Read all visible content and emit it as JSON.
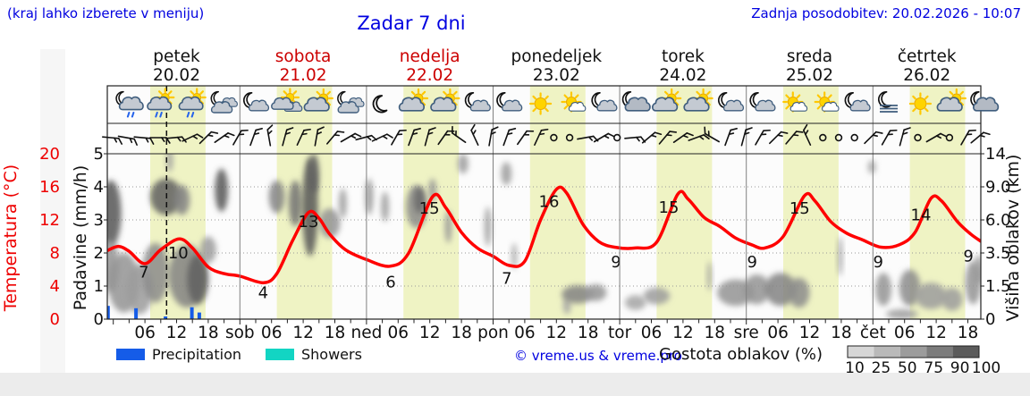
{
  "header": {
    "note": "(kraj lahko izberete v meniju)",
    "title": "Zadar 7 dni",
    "updated": "Zadnja posodobitev: 20.02.2026 - 10:07"
  },
  "days": [
    {
      "name": "petek",
      "date": "20.02",
      "red": false
    },
    {
      "name": "sobota",
      "date": "21.02",
      "red": true
    },
    {
      "name": "nedelja",
      "date": "22.02",
      "red": true
    },
    {
      "name": "ponedeljek",
      "date": "23.02",
      "red": false
    },
    {
      "name": "torek",
      "date": "24.02",
      "red": false
    },
    {
      "name": "sreda",
      "date": "25.02",
      "red": false
    },
    {
      "name": "četrtek",
      "date": "26.02",
      "red": false
    }
  ],
  "axes": {
    "temp_label": "Temperatura (°C)",
    "temp_ticks": [
      20,
      16,
      12,
      8,
      4,
      0
    ],
    "precip_label": "Padavine (mm/h)",
    "precip_ticks": [
      5,
      4,
      3,
      2,
      1,
      0
    ],
    "cloud_label": "Višina oblakov (km)",
    "cloud_ticks": [
      "14",
      "9.0",
      "6.0",
      "3.5",
      "1.5",
      "0"
    ],
    "hour_ticks": [
      "06",
      "12",
      "18"
    ],
    "day_abbr": [
      "sob",
      "ned",
      "pon",
      "tor",
      "sre",
      "čet"
    ]
  },
  "legend": {
    "precipitation": "Precipitation",
    "showers": "Showers",
    "credit": "© vreme.us & vreme.pro",
    "cloud_density": "Gostota oblakov (%)",
    "density_ticks": [
      "10",
      "25",
      "50",
      "75",
      "90",
      "100"
    ],
    "density_colors": [
      "#D6D6D6",
      "#B9B9B9",
      "#9C9C9C",
      "#7C7C7C",
      "#5B5B5B"
    ]
  },
  "colors": {
    "blue_text": "#0000e0",
    "red_text": "#cc0000",
    "temp_curve": "#ff0000",
    "temp_axis": "#ee0000",
    "precip_bar": "#155ce8",
    "showers": "#12d5c3",
    "day_band": "#eff3c4",
    "panel_bg": "#fcfcfc",
    "grid": "#999999"
  },
  "chart_data": {
    "type": "line",
    "title": "Zadar 7 dni",
    "ylabel_left": "Temperatura (°C) / Padavine (mm/h)",
    "ylabel_right": "Višina oblakov (km)",
    "temp_range": [
      0,
      20
    ],
    "precip_range": [
      0,
      5
    ],
    "start_hour": -1.1,
    "end_hour": 164.5,
    "now_hour": 10.1,
    "sunrise": 7.0,
    "sunset": 17.5,
    "temperature_points": [
      [
        -1.1,
        8.3
      ],
      [
        1,
        8.8
      ],
      [
        3,
        8.2
      ],
      [
        6,
        6.7
      ],
      [
        9,
        8.4
      ],
      [
        12.5,
        9.7
      ],
      [
        15,
        8.6
      ],
      [
        18,
        6.3
      ],
      [
        21,
        5.5
      ],
      [
        24,
        5.2
      ],
      [
        28.5,
        4.4
      ],
      [
        31,
        5.5
      ],
      [
        34,
        9.5
      ],
      [
        37,
        12.9
      ],
      [
        39,
        12.2
      ],
      [
        41,
        10.3
      ],
      [
        44,
        8.4
      ],
      [
        48,
        7.2
      ],
      [
        52.5,
        6.4
      ],
      [
        56,
        8.0
      ],
      [
        60.5,
        14.8
      ],
      [
        63,
        13.5
      ],
      [
        66,
        10.5
      ],
      [
        69,
        8.6
      ],
      [
        72,
        7.6
      ],
      [
        75,
        6.5
      ],
      [
        78,
        7.0
      ],
      [
        81,
        12.0
      ],
      [
        84,
        15.7
      ],
      [
        86,
        15.2
      ],
      [
        89,
        11.5
      ],
      [
        92,
        9.4
      ],
      [
        95,
        8.7
      ],
      [
        99,
        8.6
      ],
      [
        103,
        9.3
      ],
      [
        107,
        15.1
      ],
      [
        109,
        14.5
      ],
      [
        112,
        12.3
      ],
      [
        115,
        11.2
      ],
      [
        118,
        9.8
      ],
      [
        121,
        9.0
      ],
      [
        123.5,
        8.6
      ],
      [
        127,
        10.0
      ],
      [
        131,
        14.9
      ],
      [
        133,
        14.3
      ],
      [
        136,
        11.8
      ],
      [
        139,
        10.4
      ],
      [
        142,
        9.6
      ],
      [
        145.5,
        8.7
      ],
      [
        149,
        9.0
      ],
      [
        152,
        10.5
      ],
      [
        155,
        14.6
      ],
      [
        157,
        14.3
      ],
      [
        160,
        11.8
      ],
      [
        162.5,
        10.3
      ],
      [
        164.5,
        9.4
      ]
    ],
    "temp_value_labels": [
      [
        5.8,
        5.7,
        "7"
      ],
      [
        12.3,
        8.0,
        "10"
      ],
      [
        28.4,
        3.2,
        "4"
      ],
      [
        37.0,
        11.8,
        "13"
      ],
      [
        52.6,
        4.5,
        "6"
      ],
      [
        59.9,
        13.4,
        "15"
      ],
      [
        74.6,
        4.9,
        "7"
      ],
      [
        82.6,
        14.2,
        "16"
      ],
      [
        95.3,
        6.9,
        "9"
      ],
      [
        105.3,
        13.5,
        "15"
      ],
      [
        121.1,
        6.9,
        "9"
      ],
      [
        130.1,
        13.4,
        "15"
      ],
      [
        145.0,
        6.9,
        "9"
      ],
      [
        153.1,
        12.6,
        "14"
      ],
      [
        162.1,
        7.6,
        "9"
      ]
    ],
    "precip_bars_mm": [
      [
        -1.0,
        0.4
      ],
      [
        4.3,
        0.33
      ],
      [
        9.9,
        0.08
      ],
      [
        14.9,
        0.36
      ],
      [
        16.3,
        0.2
      ]
    ],
    "cloud_blobs": [
      [
        -0.5,
        3.2,
        4,
        2.0,
        0.85
      ],
      [
        -0.5,
        1.6,
        3,
        1.6,
        0.5
      ],
      [
        2,
        1.1,
        6,
        1.8,
        0.5
      ],
      [
        5,
        0.9,
        5,
        1.5,
        0.45
      ],
      [
        8,
        1.4,
        5,
        1.8,
        0.55
      ],
      [
        10,
        3.7,
        6,
        1.1,
        0.8
      ],
      [
        10.7,
        4.8,
        1.2,
        0.7,
        0.45
      ],
      [
        13,
        3.6,
        3,
        0.9,
        0.6
      ],
      [
        14,
        1.3,
        7,
        1.9,
        0.6
      ],
      [
        16,
        1.2,
        4,
        1.5,
        0.8
      ],
      [
        18,
        2.1,
        3,
        0.8,
        0.45
      ],
      [
        20.5,
        3.9,
        2.5,
        1.3,
        0.85
      ],
      [
        31,
        3.7,
        3,
        1.0,
        0.6
      ],
      [
        34.5,
        3.5,
        2.5,
        1.4,
        0.7
      ],
      [
        37.3,
        3.4,
        3,
        3.0,
        0.85
      ],
      [
        38,
        4.4,
        2,
        1.2,
        0.8
      ],
      [
        41,
        2.9,
        4,
        0.9,
        0.5
      ],
      [
        43.5,
        3.5,
        1.5,
        0.9,
        0.45
      ],
      [
        48.5,
        3.7,
        1.5,
        1.1,
        0.5
      ],
      [
        51.5,
        3.4,
        1.5,
        0.9,
        0.45
      ],
      [
        57.5,
        3.4,
        4,
        1.3,
        0.55
      ],
      [
        58,
        3.6,
        2,
        0.8,
        0.75
      ],
      [
        60.5,
        3.9,
        1.5,
        0.7,
        0.5
      ],
      [
        63.5,
        2.8,
        1.3,
        1.0,
        0.5
      ],
      [
        66.3,
        4.7,
        2,
        0.6,
        0.45
      ],
      [
        71,
        2.8,
        1.3,
        1.2,
        0.45
      ],
      [
        74.5,
        4.4,
        2,
        0.7,
        0.45
      ],
      [
        76,
        1.9,
        1,
        0.8,
        0.4
      ],
      [
        86,
        0.4,
        1.5,
        0.5,
        0.4
      ],
      [
        88,
        0.75,
        6,
        0.55,
        0.6
      ],
      [
        91.5,
        0.8,
        4,
        0.5,
        0.5
      ],
      [
        99,
        0.5,
        4,
        0.45,
        0.4
      ],
      [
        103,
        0.7,
        5,
        0.5,
        0.45
      ],
      [
        113,
        1.3,
        0.8,
        0.9,
        0.45
      ],
      [
        118,
        0.8,
        7,
        0.8,
        0.5
      ],
      [
        122,
        0.9,
        5,
        0.9,
        0.5
      ],
      [
        126.5,
        0.9,
        6,
        1.0,
        0.6
      ],
      [
        130,
        0.8,
        4,
        0.9,
        0.55
      ],
      [
        137.8,
        1.9,
        0.8,
        1.2,
        0.5
      ],
      [
        143.8,
        4.6,
        1.5,
        0.4,
        0.4
      ],
      [
        146,
        0.9,
        3,
        1.0,
        0.5
      ],
      [
        149.5,
        0.15,
        6,
        0.3,
        0.45
      ],
      [
        151,
        0.95,
        4,
        1.1,
        0.55
      ],
      [
        155,
        0.7,
        6,
        0.8,
        0.45
      ],
      [
        159,
        0.6,
        4,
        0.7,
        0.45
      ],
      [
        163,
        1.1,
        3,
        1.3,
        0.5
      ],
      [
        164,
        1.5,
        1.5,
        0.9,
        0.5
      ]
    ],
    "weather_icons": [
      [
        "moon-rain",
        "sun-rain",
        "sun-rain",
        "moon-clouds"
      ],
      [
        "moon-cloud",
        "sun-clouds",
        "sun-cloud",
        "moon-clouds"
      ],
      [
        "moon",
        "sun-cloud",
        "sun-cloud",
        "moon-cloud"
      ],
      [
        "moon-cloud",
        "sun",
        "sun-cloud-small",
        "moon-cloud"
      ],
      [
        "moon-cloud-dark",
        "sun-cloud",
        "sun-cloud",
        "moon-cloud"
      ],
      [
        "moon-cloud",
        "sun-cloud-small",
        "sun-cloud-small",
        "moon-cloud"
      ],
      [
        "moon-fog",
        "sun",
        "sun-cloud",
        "moon-cloud-dark"
      ]
    ],
    "wind_barbs": [
      [
        -0.5,
        "b",
        95
      ],
      [
        2.5,
        "b",
        100
      ],
      [
        5.5,
        "b",
        95
      ],
      [
        8.5,
        "b",
        90
      ],
      [
        11.5,
        "b",
        85
      ],
      [
        14.5,
        "b",
        65
      ],
      [
        17.5,
        "b",
        45
      ],
      [
        20.5,
        "b",
        55
      ],
      [
        23.5,
        "b",
        30
      ],
      [
        26.5,
        "b",
        20
      ],
      [
        29.5,
        "b",
        350
      ],
      [
        32.5,
        "b",
        15
      ],
      [
        35.5,
        "b",
        25
      ],
      [
        38.5,
        "b",
        10
      ],
      [
        41.5,
        "b",
        40
      ],
      [
        44.5,
        "b",
        60
      ],
      [
        47.5,
        "b",
        75
      ],
      [
        50.5,
        "b",
        65
      ],
      [
        53.5,
        "b",
        30
      ],
      [
        56.5,
        "b",
        20
      ],
      [
        59.5,
        "b",
        15
      ],
      [
        62.5,
        "b",
        35
      ],
      [
        65.5,
        "b",
        305
      ],
      [
        68.5,
        "b",
        335
      ],
      [
        71.5,
        "b",
        10
      ],
      [
        74.5,
        "b",
        20
      ],
      [
        77.5,
        "b",
        35
      ],
      [
        80.5,
        "b",
        25
      ],
      [
        83.5,
        "c",
        0
      ],
      [
        86.5,
        "c",
        0
      ],
      [
        89.5,
        "b",
        80
      ],
      [
        92.5,
        "b",
        60
      ],
      [
        95.5,
        "c",
        0
      ],
      [
        98.5,
        "b",
        85
      ],
      [
        101.5,
        "b",
        50
      ],
      [
        104.5,
        "b",
        40
      ],
      [
        107.5,
        "b",
        55
      ],
      [
        110.5,
        "b",
        70
      ],
      [
        113.5,
        "b",
        300
      ],
      [
        116.5,
        "b",
        20
      ],
      [
        119.5,
        "b",
        15
      ],
      [
        122.5,
        "b",
        30
      ],
      [
        125.5,
        "b",
        45
      ],
      [
        128.5,
        "b",
        40
      ],
      [
        131.5,
        "b",
        335
      ],
      [
        134.5,
        "c",
        0
      ],
      [
        137.5,
        "c",
        0
      ],
      [
        140.5,
        "c",
        0
      ],
      [
        143.5,
        "b",
        45
      ],
      [
        146.5,
        "b",
        30
      ],
      [
        149.5,
        "b",
        15
      ],
      [
        152.5,
        "c",
        0
      ],
      [
        155.5,
        "b",
        60
      ],
      [
        158.5,
        "c",
        0
      ],
      [
        161.5,
        "b",
        30
      ],
      [
        163.8,
        "b",
        50
      ]
    ]
  }
}
